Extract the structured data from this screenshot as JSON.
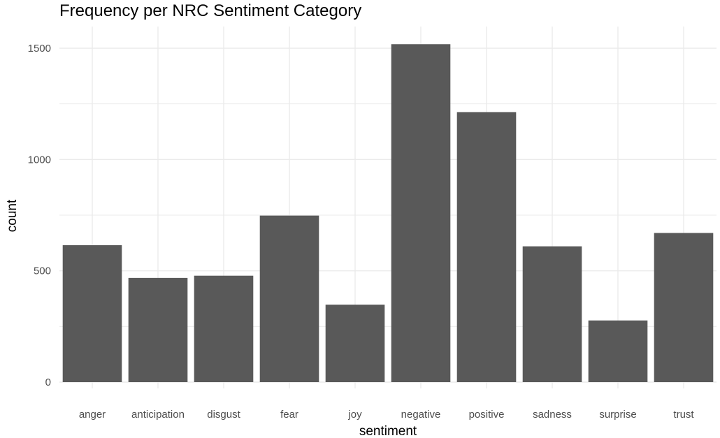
{
  "chart_data": {
    "type": "bar",
    "title": "Frequency per NRC Sentiment Category",
    "xlabel": "sentiment",
    "ylabel": "count",
    "categories": [
      "anger",
      "anticipation",
      "disgust",
      "fear",
      "joy",
      "negative",
      "positive",
      "sadness",
      "surprise",
      "trust"
    ],
    "values": [
      615,
      468,
      478,
      748,
      348,
      1518,
      1213,
      610,
      277,
      670
    ],
    "ylim": [
      0,
      1600
    ],
    "yticks": [
      0,
      500,
      1000,
      1500
    ],
    "bar_color": "#595959",
    "grid": true,
    "grid_color": "#ebebeb",
    "legend": "none"
  }
}
